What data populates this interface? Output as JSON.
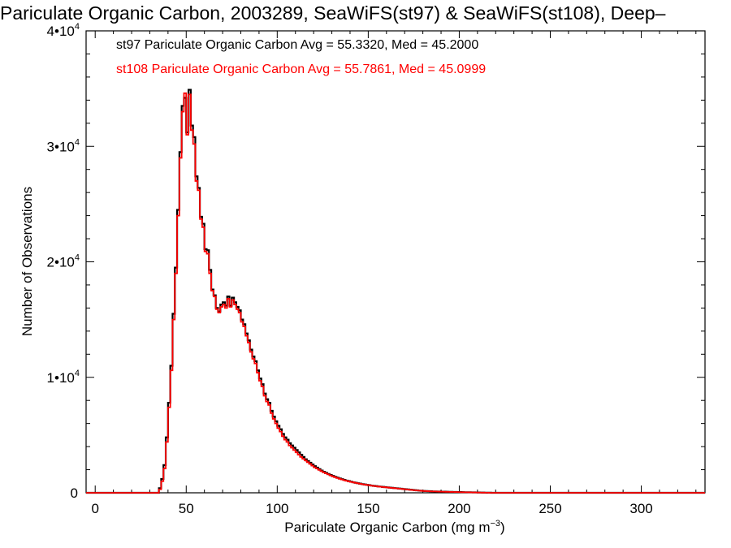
{
  "chart_data": {
    "type": "histogram-step",
    "title": "Pariculate Organic Carbon, 2003289, SeaWiFS(st97) & SeaWiFS(st108), Deep–",
    "xlabel": "Pariculate Organic Carbon (mg m",
    "xlabel_sup": "−3",
    "xlabel_tail": ")",
    "ylabel": "Number of Observations",
    "xlim": [
      -5,
      335
    ],
    "ylim": [
      0,
      40000
    ],
    "x_ticks": [
      {
        "value": 0,
        "label": "0"
      },
      {
        "value": 50,
        "label": "50"
      },
      {
        "value": 100,
        "label": "100"
      },
      {
        "value": 150,
        "label": "150"
      },
      {
        "value": 200,
        "label": "200"
      },
      {
        "value": 250,
        "label": "250"
      },
      {
        "value": 300,
        "label": "300"
      }
    ],
    "y_ticks": [
      {
        "value": 0,
        "mantissa": "0",
        "exp": ""
      },
      {
        "value": 10000,
        "mantissa": "1•10",
        "exp": "4"
      },
      {
        "value": 20000,
        "mantissa": "2•10",
        "exp": "4"
      },
      {
        "value": 30000,
        "mantissa": "3•10",
        "exp": "4"
      },
      {
        "value": 40000,
        "mantissa": "4•10",
        "exp": "4"
      }
    ],
    "x_start": -5,
    "bin_width": 1.25,
    "series": [
      {
        "name": "st97",
        "color": "#000000",
        "legend": "st97 Pariculate Organic Carbon Avg = 55.3320, Med = 45.2000",
        "values": [
          0,
          0,
          0,
          0,
          0,
          0,
          0,
          0,
          0,
          0,
          0,
          0,
          0,
          0,
          0,
          0,
          0,
          0,
          0,
          0,
          0,
          0,
          0,
          0,
          0,
          0,
          0,
          0,
          0,
          0,
          0,
          0,
          400,
          1200,
          2400,
          4800,
          7800,
          11000,
          15500,
          19500,
          24500,
          29500,
          33500,
          34200,
          31200,
          34900,
          31800,
          30800,
          27400,
          26400,
          23900,
          23300,
          21100,
          21000,
          19300,
          17600,
          17100,
          16000,
          15700,
          16300,
          16500,
          16200,
          17000,
          16200,
          16900,
          16500,
          16100,
          15800,
          15000,
          14600,
          13800,
          13200,
          12400,
          11800,
          11400,
          10600,
          9900,
          9400,
          8600,
          8100,
          7800,
          7100,
          6600,
          6200,
          5800,
          5500,
          5100,
          4800,
          4600,
          4300,
          4100,
          3900,
          3700,
          3500,
          3300,
          3100,
          2900,
          2750,
          2600,
          2450,
          2300,
          2180,
          2050,
          1930,
          1820,
          1720,
          1630,
          1540,
          1460,
          1380,
          1310,
          1240,
          1180,
          1120,
          1060,
          1010,
          960,
          910,
          870,
          830,
          790,
          750,
          720,
          690,
          660,
          630,
          600,
          580,
          550,
          530,
          510,
          490,
          470,
          450,
          430,
          410,
          390,
          370,
          350,
          330,
          310,
          290,
          270,
          250,
          230,
          210,
          190,
          175,
          160,
          150,
          140,
          130,
          120,
          115,
          110,
          105,
          100,
          95,
          90,
          85,
          80,
          75,
          70,
          65,
          60,
          55,
          50,
          46,
          42,
          38,
          34,
          30,
          26,
          22,
          18,
          14,
          10,
          6
        ]
      },
      {
        "name": "st108",
        "color": "#ff0000",
        "legend": "st108 Pariculate Organic Carbon Avg = 55.7861, Med = 45.0999",
        "values": [
          0,
          0,
          0,
          0,
          0,
          0,
          0,
          0,
          0,
          0,
          0,
          0,
          0,
          0,
          0,
          0,
          0,
          0,
          0,
          0,
          0,
          0,
          0,
          0,
          0,
          0,
          0,
          0,
          0,
          0,
          0,
          0,
          300,
          1000,
          2100,
          4400,
          7400,
          10600,
          15000,
          19000,
          24000,
          29000,
          33000,
          34600,
          31000,
          34500,
          31400,
          30200,
          27000,
          26200,
          23700,
          23000,
          20900,
          20700,
          19000,
          17500,
          17000,
          15900,
          15600,
          16100,
          16300,
          16000,
          16800,
          16100,
          16700,
          16300,
          15900,
          15600,
          14800,
          14400,
          13600,
          13000,
          12200,
          11600,
          11200,
          10400,
          9700,
          9200,
          8400,
          7900,
          7600,
          6900,
          6400,
          6000,
          5600,
          5300,
          4900,
          4600,
          4400,
          4100,
          3900,
          3700,
          3500,
          3300,
          3100,
          2950,
          2800,
          2650,
          2500,
          2350,
          2200,
          2100,
          1980,
          1870,
          1770,
          1680,
          1590,
          1500,
          1420,
          1350,
          1280,
          1210,
          1150,
          1090,
          1040,
          990,
          940,
          900,
          860,
          820,
          780,
          740,
          710,
          680,
          650,
          620,
          590,
          570,
          540,
          520,
          500,
          480,
          460,
          440,
          420,
          400,
          380,
          360,
          340,
          320,
          300,
          280,
          260,
          240,
          220,
          200,
          185,
          170,
          155,
          145,
          135,
          125,
          118,
          112,
          106,
          100,
          95,
          90,
          85,
          80,
          75,
          70,
          65,
          60,
          55,
          50,
          46,
          42,
          38,
          34,
          30,
          26,
          22,
          18,
          14,
          10,
          6
        ]
      }
    ]
  }
}
